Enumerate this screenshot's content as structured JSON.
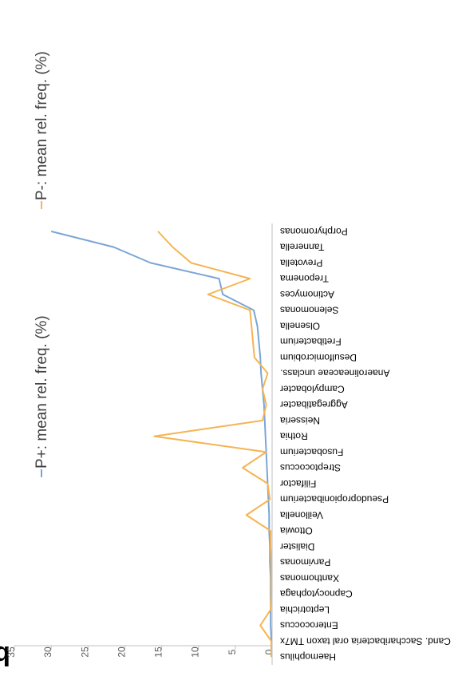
{
  "panel_label": "b",
  "chart_data": {
    "type": "line",
    "orientation": "rotated-90",
    "categories": [
      "Porphyromonas",
      "Tannerella",
      "Prevotella",
      "Treponema",
      "Actinomyces",
      "Selenomonas",
      "Olsenella",
      "Fretibacterium",
      "Desulfomicrobium",
      "Anaerolineaceae unclass.",
      "Campylobacter",
      "Aggregatibacter",
      "Neisseria",
      "Rothia",
      "Fusobacterium",
      "Streptococcus",
      "Filifactor",
      "Pseudopropionibacterium",
      "Veillonella",
      "Ottowia",
      "Dialister",
      "Parvimonas",
      "Xanthomonas",
      "Capnocytophaga",
      "Leptotrichia",
      "Enterococcus",
      "Cand. Saccharibacteria oral taxon TM7x",
      "Haemophilus"
    ],
    "series": [
      {
        "name": "P+: mean rel. freq. (%)",
        "color": "#7aa6d6",
        "values": [
          30.0,
          21.5,
          16.5,
          7.2,
          6.7,
          2.5,
          2.0,
          1.8,
          1.6,
          1.5,
          1.3,
          1.1,
          1.0,
          0.9,
          0.8,
          0.7,
          0.6,
          0.5,
          0.4,
          0.4,
          0.3,
          0.3,
          0.2,
          0.2,
          0.2,
          0.2,
          0.1,
          0.1
        ]
      },
      {
        "name": "P-: mean rel. freq. (%)",
        "color": "#f5b453",
        "values": [
          15.5,
          13.5,
          11.0,
          3.0,
          8.7,
          3.0,
          2.8,
          2.6,
          2.4,
          0.6,
          1.3,
          0.8,
          1.3,
          16.0,
          0.8,
          4.0,
          0.6,
          0.3,
          3.5,
          0.2,
          0.2,
          0.1,
          0.1,
          0.1,
          0.2,
          1.6,
          0.1,
          0.1
        ]
      }
    ],
    "value_axis": {
      "range": [
        0,
        35
      ],
      "ticks": [
        0,
        5,
        10,
        15,
        20,
        25,
        30,
        35
      ]
    },
    "grid": false,
    "legend_position": "top"
  }
}
